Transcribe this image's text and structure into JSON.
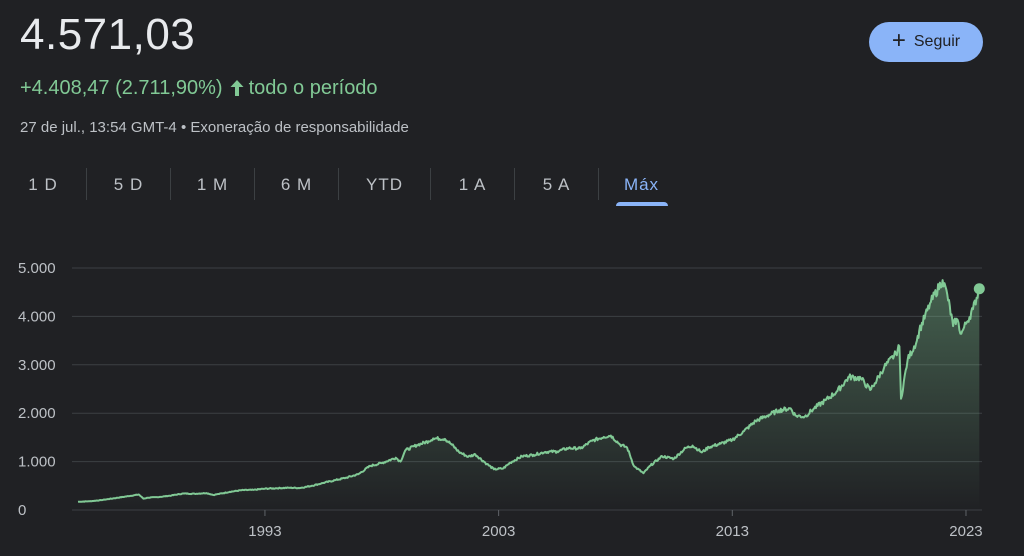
{
  "quote": {
    "price": "4.571,03",
    "change": "+4.408,47 (2.711,90%)",
    "period": "todo o período",
    "timestamp": "27 de jul., 13:54 GMT-4",
    "separator": "•",
    "disclaimer": "Exoneração de responsabilidade"
  },
  "follow_button": {
    "label": "Seguir",
    "icon": "plus-icon"
  },
  "tabs": [
    {
      "label": "1 D",
      "active": false
    },
    {
      "label": "5 D",
      "active": false
    },
    {
      "label": "1 M",
      "active": false
    },
    {
      "label": "6 M",
      "active": false
    },
    {
      "label": "YTD",
      "active": false
    },
    {
      "label": "1 A",
      "active": false
    },
    {
      "label": "5 A",
      "active": false
    },
    {
      "label": "Máx",
      "active": true
    }
  ],
  "colors": {
    "background": "#202124",
    "positive": "#81c995",
    "accent": "#8ab4f8",
    "text": "#e8eaed",
    "muted": "#bdc1c6",
    "grid": "#3c4043"
  },
  "chart_data": {
    "type": "area",
    "title": "",
    "xlabel": "",
    "ylabel": "",
    "xlim": [
      1985.0,
      2023.6
    ],
    "ylim": [
      0,
      5000
    ],
    "y_ticks": [
      0,
      1000,
      2000,
      3000,
      4000,
      5000
    ],
    "y_tick_labels": [
      "0",
      "1.000",
      "2.000",
      "3.000",
      "4.000",
      "5.000"
    ],
    "x_ticks": [
      1993,
      2003,
      2013,
      2023
    ],
    "x_tick_labels": [
      "1993",
      "2003",
      "2013",
      "2023"
    ],
    "grid": true,
    "series": [
      {
        "x": [
          1985.0,
          1985.5,
          1986.0,
          1986.5,
          1987.0,
          1987.6,
          1987.8,
          1988.0,
          1988.5,
          1989.0,
          1989.5,
          1990.0,
          1990.5,
          1990.8,
          1991.0,
          1991.5,
          1992.0,
          1992.5,
          1993.0,
          1993.5,
          1994.0,
          1994.5,
          1995.0,
          1995.5,
          1996.0,
          1996.5,
          1997.0,
          1997.5,
          1998.0,
          1998.6,
          1998.8,
          1999.0,
          1999.5,
          2000.0,
          2000.2,
          2000.7,
          2001.0,
          2001.3,
          2001.7,
          2002.0,
          2002.5,
          2002.8,
          2003.2,
          2003.5,
          2004.0,
          2004.5,
          2005.0,
          2005.5,
          2006.0,
          2006.5,
          2007.0,
          2007.5,
          2007.8,
          2008.2,
          2008.5,
          2008.8,
          2009.2,
          2009.5,
          2010.0,
          2010.5,
          2011.0,
          2011.3,
          2011.7,
          2012.0,
          2012.5,
          2013.0,
          2013.5,
          2014.0,
          2014.5,
          2015.0,
          2015.5,
          2015.7,
          2016.1,
          2016.5,
          2017.0,
          2017.5,
          2018.0,
          2018.5,
          2018.9,
          2019.1,
          2019.5,
          2020.0,
          2020.15,
          2020.22,
          2020.5,
          2020.9,
          2021.0,
          2021.5,
          2022.0,
          2022.2,
          2022.45,
          2022.6,
          2022.8,
          2023.0,
          2023.3,
          2023.57
        ],
        "y": [
          170,
          180,
          205,
          240,
          275,
          320,
          235,
          255,
          270,
          300,
          340,
          335,
          350,
          310,
          330,
          375,
          410,
          415,
          440,
          450,
          460,
          455,
          500,
          560,
          615,
          670,
          740,
          910,
          970,
          1080,
          1000,
          1230,
          1340,
          1420,
          1480,
          1470,
          1350,
          1200,
          1100,
          1150,
          950,
          840,
          860,
          980,
          1110,
          1140,
          1200,
          1210,
          1280,
          1270,
          1430,
          1510,
          1540,
          1350,
          1290,
          900,
          760,
          920,
          1110,
          1060,
          1280,
          1330,
          1190,
          1300,
          1370,
          1450,
          1630,
          1840,
          1950,
          2060,
          2100,
          1950,
          1930,
          2100,
          2270,
          2460,
          2750,
          2720,
          2480,
          2620,
          2950,
          3230,
          3380,
          2300,
          3100,
          3500,
          3700,
          4300,
          4750,
          4450,
          3800,
          3950,
          3640,
          3850,
          4150,
          4571
        ]
      }
    ],
    "last_value": 4571.03
  }
}
